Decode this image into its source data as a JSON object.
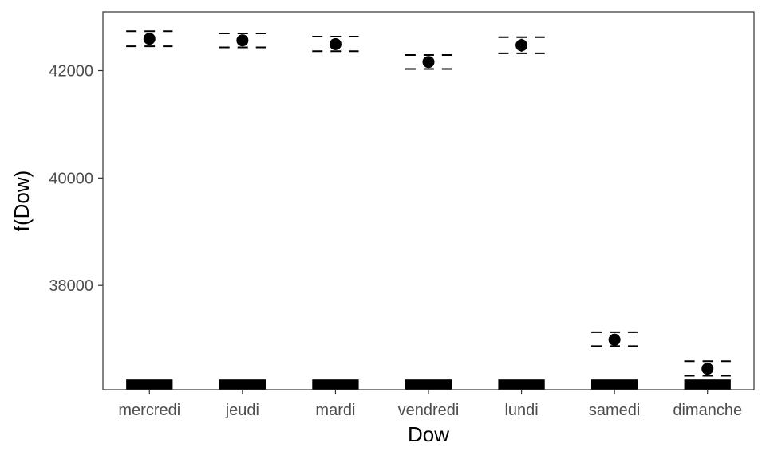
{
  "chart_data": {
    "type": "scatter",
    "title": "",
    "xlabel": "Dow",
    "ylabel": "f(Dow)",
    "categories": [
      "mercredi",
      "jeudi",
      "mardi",
      "vendredi",
      "lundi",
      "samedi",
      "dimanche"
    ],
    "y_ticks": [
      38000,
      40000,
      42000
    ],
    "ylim": [
      36060,
      43090
    ],
    "grid": false,
    "legend": "none",
    "series": [
      {
        "values": [
          42590,
          42560,
          42490,
          42160,
          42470,
          36990,
          36450
        ],
        "lower": [
          42450,
          42430,
          42360,
          42030,
          42320,
          36870,
          36320
        ],
        "upper": [
          42730,
          42690,
          42630,
          42290,
          42620,
          37130,
          36590
        ]
      }
    ],
    "rug_bottom": 36060,
    "rug_top": 36250,
    "colors": {
      "point": "#000000",
      "rug": "#000000",
      "frame": "#333333",
      "tick_text": "#4d4d4d"
    }
  }
}
